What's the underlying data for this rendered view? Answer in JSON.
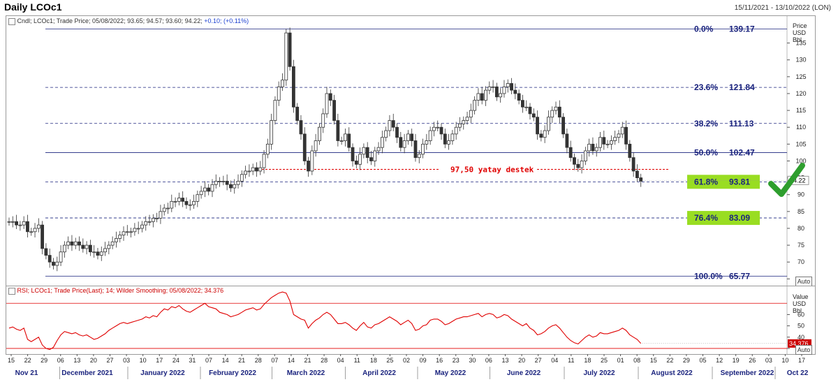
{
  "header": {
    "title": "Daily LCOc1",
    "date_range": "15/11/2021 - 13/10/2022 (LON)"
  },
  "price_legend": {
    "text": "Cndl; LCOc1; Trade Price; 05/08/2022; 93.65; 94.57; 93.60; 94.22;",
    "change": "+0.10; (+0.11%)"
  },
  "rsi_legend": {
    "text": "RSI; LCOc1; Trade Price(Last); 14; Wilder Smoothing; 05/08/2022; 34.376"
  },
  "price_axis": {
    "title_line1": "Price",
    "title_line2": "USD",
    "title_line3": "Bbl",
    "ticks": [
      65,
      70,
      75,
      80,
      85,
      90,
      95,
      100,
      105,
      110,
      115,
      120,
      125,
      130,
      135
    ],
    "last_value": "94.22",
    "auto_label": "Auto"
  },
  "rsi_axis": {
    "title_line1": "Value",
    "title_line2": "USD",
    "title_line3": "Bbl",
    "ticks": [
      30,
      40,
      50,
      60
    ],
    "last_value": "34.376",
    "auto_label": "Auto"
  },
  "annotations": {
    "support_text": "97,50 yatay destek",
    "check_icon": "check-mark-icon"
  },
  "colors": {
    "fib_line": "#1a237e",
    "fib_text": "#1a237e",
    "support": "#e00000",
    "highlight": "#99dd22",
    "check": "#2e9e2e",
    "rsi_line": "#e00000",
    "candle": "#333333"
  },
  "chart_data": {
    "type": "candlestick",
    "instrument": "LCOc1",
    "x_axis": {
      "day_ticks": [
        "15",
        "22",
        "29",
        "06",
        "13",
        "20",
        "27",
        "03",
        "10",
        "17",
        "24",
        "31",
        "07",
        "14",
        "21",
        "28",
        "07",
        "14",
        "21",
        "28",
        "04",
        "11",
        "18",
        "25",
        "02",
        "09",
        "16",
        "23",
        "30",
        "06",
        "13",
        "20",
        "27",
        "04",
        "11",
        "18",
        "25",
        "01",
        "08",
        "15",
        "22",
        "29",
        "05",
        "12",
        "19",
        "26",
        "03",
        "10",
        "17"
      ],
      "month_labels": [
        "Nov 21",
        "December 2021",
        "January 2022",
        "February 2022",
        "March 2022",
        "April 2022",
        "May 2022",
        "June 2022",
        "July 2022",
        "August 2022",
        "September 2022",
        "Oct 22"
      ]
    },
    "y_range": [
      63,
      143
    ],
    "fibonacci": [
      {
        "level": "0.0%",
        "price": 139.17,
        "label": "139.17",
        "style": "solid"
      },
      {
        "level": "23.6%",
        "price": 121.84,
        "label": "121.84",
        "style": "dashed"
      },
      {
        "level": "38.2%",
        "price": 111.13,
        "label": "111.13",
        "style": "dashed"
      },
      {
        "level": "50.0%",
        "price": 102.47,
        "label": "102.47",
        "style": "solid"
      },
      {
        "level": "61.8%",
        "price": 93.81,
        "label": "93.81",
        "style": "dashed",
        "highlight": true
      },
      {
        "level": "76.4%",
        "price": 83.09,
        "label": "83.09",
        "style": "dashed",
        "highlight": true
      },
      {
        "level": "100.0%",
        "price": 65.77,
        "label": "65.77",
        "style": "solid"
      }
    ],
    "support_level": 97.5,
    "close_series": [
      82,
      82,
      81,
      81,
      82,
      79,
      79,
      80,
      81,
      74,
      72,
      70,
      69,
      70,
      73,
      75,
      76,
      75,
      76,
      75,
      74,
      75,
      73,
      73,
      72,
      73,
      74,
      75,
      76,
      77,
      78,
      79,
      79,
      79,
      80,
      80,
      81,
      82,
      82,
      83,
      83,
      85,
      86,
      86,
      88,
      88,
      89,
      88,
      87,
      87,
      88,
      90,
      91,
      92,
      91,
      93,
      94,
      94,
      94,
      93,
      92,
      93,
      94,
      96,
      97,
      97,
      98,
      97,
      98,
      102,
      105,
      112,
      118,
      122,
      124,
      138,
      128,
      116,
      112,
      108,
      100,
      97,
      103,
      106,
      110,
      114,
      120,
      118,
      112,
      106,
      106,
      108,
      104,
      100,
      99,
      102,
      104,
      101,
      100,
      103,
      104,
      107,
      109,
      112,
      110,
      107,
      104,
      106,
      108,
      106,
      101,
      102,
      105,
      106,
      109,
      110,
      110,
      108,
      105,
      106,
      108,
      110,
      111,
      112,
      113,
      115,
      118,
      120,
      118,
      121,
      122,
      122,
      119,
      120,
      122,
      123,
      121,
      120,
      118,
      116,
      116,
      114,
      113,
      108,
      107,
      109,
      113,
      115,
      116,
      113,
      108,
      104,
      101,
      99,
      98,
      100,
      103,
      105,
      103,
      104,
      107,
      105,
      105,
      106,
      107,
      108,
      110,
      105,
      101,
      97,
      95,
      94
    ],
    "rsi": {
      "name": "RSI",
      "period": 14,
      "last": 34.376,
      "y_range": [
        25,
        85
      ],
      "ref_lines": [
        30,
        70
      ],
      "values": [
        48,
        49,
        47,
        46,
        48,
        38,
        36,
        38,
        40,
        33,
        30,
        29,
        31,
        37,
        42,
        45,
        44,
        43,
        44,
        42,
        41,
        42,
        40,
        38,
        39,
        41,
        43,
        46,
        48,
        50,
        52,
        53,
        52,
        53,
        54,
        55,
        56,
        58,
        57,
        59,
        58,
        62,
        65,
        64,
        67,
        66,
        68,
        65,
        63,
        62,
        64,
        66,
        68,
        70,
        67,
        66,
        65,
        62,
        61,
        60,
        58,
        59,
        60,
        62,
        64,
        65,
        66,
        64,
        65,
        69,
        72,
        75,
        77,
        79,
        80,
        79,
        72,
        60,
        58,
        56,
        55,
        48,
        52,
        55,
        57,
        60,
        62,
        60,
        56,
        52,
        52,
        53,
        51,
        48,
        46,
        50,
        53,
        49,
        48,
        51,
        52,
        54,
        56,
        58,
        56,
        54,
        51,
        53,
        55,
        52,
        46,
        47,
        50,
        51,
        55,
        56,
        56,
        54,
        51,
        52,
        54,
        56,
        57,
        58,
        58,
        59,
        60,
        61,
        58,
        60,
        61,
        60,
        57,
        58,
        60,
        59,
        56,
        54,
        52,
        50,
        52,
        48,
        46,
        42,
        43,
        45,
        48,
        50,
        51,
        48,
        44,
        40,
        37,
        35,
        34,
        37,
        40,
        42,
        40,
        41,
        44,
        43,
        43,
        44,
        45,
        46,
        48,
        46,
        42,
        40,
        38,
        34.376
      ]
    }
  }
}
